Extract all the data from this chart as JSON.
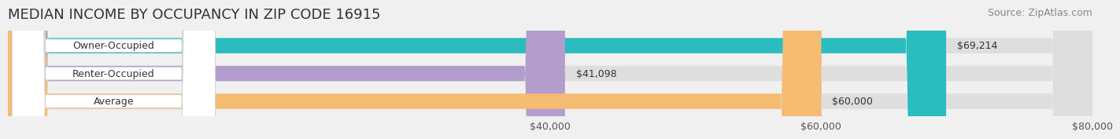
{
  "title": "MEDIAN INCOME BY OCCUPANCY IN ZIP CODE 16915",
  "source": "Source: ZipAtlas.com",
  "categories": [
    "Owner-Occupied",
    "Renter-Occupied",
    "Average"
  ],
  "values": [
    69214,
    41098,
    60000
  ],
  "bar_colors": [
    "#2BBCBF",
    "#B39DCC",
    "#F5BC72"
  ],
  "bar_labels": [
    "$69,214",
    "$41,098",
    "$60,000"
  ],
  "xmin": 0,
  "xmax": 80000,
  "xticks": [
    40000,
    60000,
    80000
  ],
  "xtick_labels": [
    "$40,000",
    "$60,000",
    "$80,000"
  ],
  "background_color": "#f0f0f0",
  "bar_bg_color": "#e8e8e8",
  "title_fontsize": 13,
  "source_fontsize": 9,
  "label_fontsize": 9,
  "tick_fontsize": 9
}
